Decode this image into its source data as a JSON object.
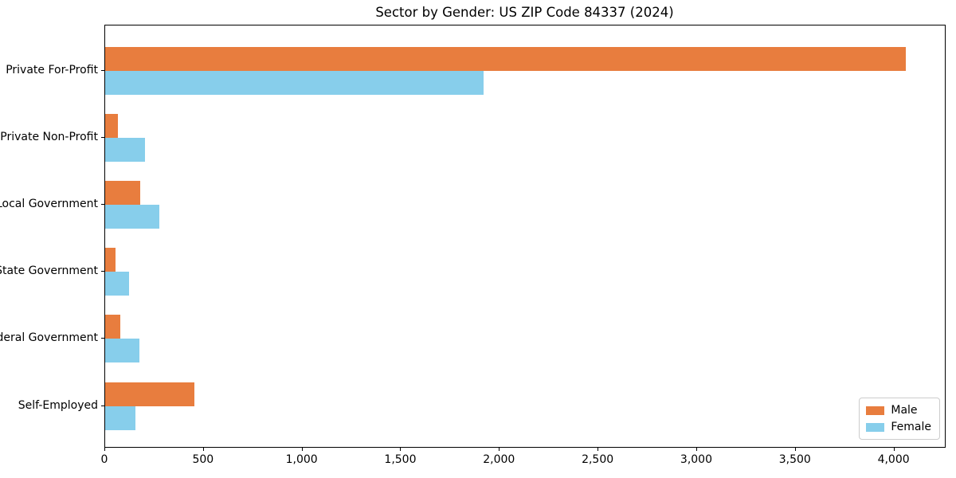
{
  "chart_data": {
    "type": "bar",
    "orientation": "horizontal",
    "title": "Sector by Gender: US ZIP Code 84337 (2024)",
    "categories": [
      "Private For-Profit",
      "Private Non-Profit",
      "Local Government",
      "State Government",
      "Federal Government",
      "Self-Employed"
    ],
    "series": [
      {
        "name": "Male",
        "color": "#e87d3e",
        "values": [
          4057,
          65,
          177,
          51,
          77,
          452
        ]
      },
      {
        "name": "Female",
        "color": "#87ceeb",
        "values": [
          1916,
          200,
          274,
          121,
          173,
          154
        ]
      }
    ],
    "xlabel": "",
    "ylabel": "",
    "xlim": [
      0,
      4260
    ],
    "xticks": [
      0,
      500,
      1000,
      1500,
      2000,
      2500,
      3000,
      3500,
      4000
    ],
    "xtick_labels": [
      "0",
      "500",
      "1,000",
      "1,500",
      "2,000",
      "2,500",
      "3,000",
      "3,500",
      "4,000"
    ],
    "grid": false,
    "legend": {
      "position": "lower-right",
      "entries": [
        "Male",
        "Female"
      ]
    },
    "colors": {
      "axis": "#000000",
      "legend_border": "#cccccc",
      "background": "#ffffff"
    }
  }
}
